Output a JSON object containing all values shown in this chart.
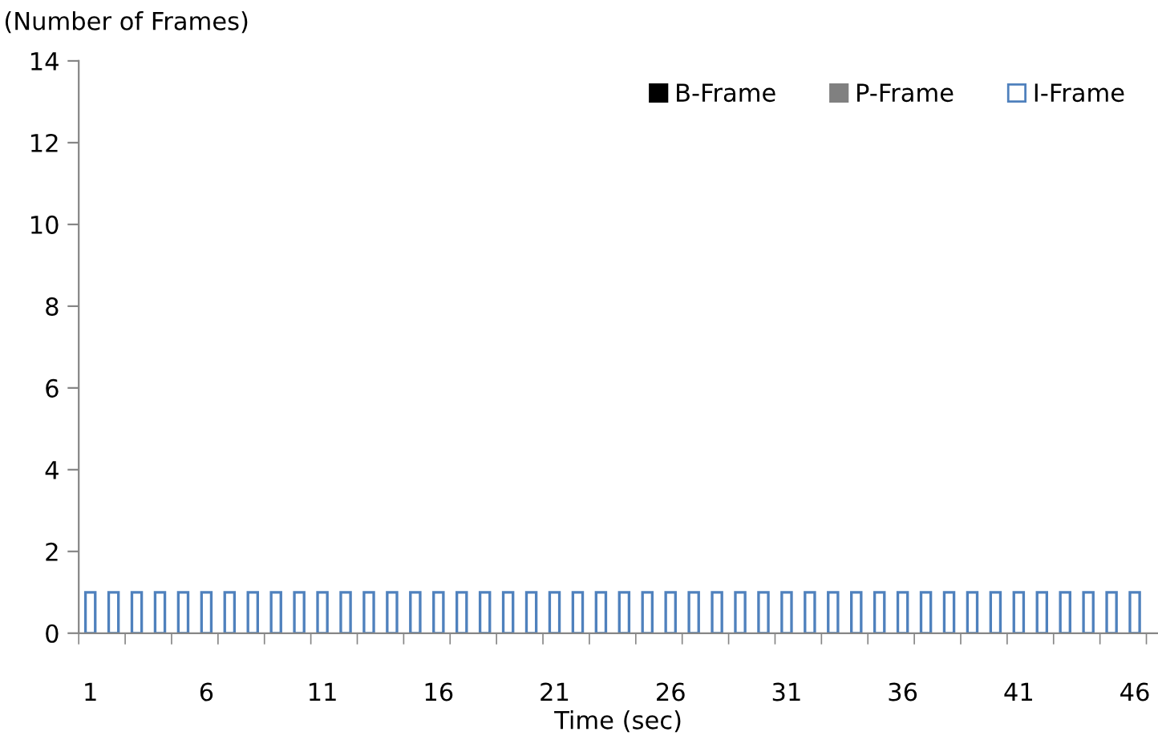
{
  "chart_data": {
    "type": "bar",
    "stacked": true,
    "ylabel": "(Number of Frames)",
    "xlabel": "Time (sec)",
    "categories": [
      "1",
      null,
      null,
      null,
      null,
      "6",
      null,
      null,
      null,
      null,
      "11",
      null,
      null,
      null,
      null,
      "16",
      null,
      null,
      null,
      null,
      "21",
      null,
      null,
      null,
      null,
      "26",
      null,
      null,
      null,
      null,
      "31",
      null,
      null,
      null,
      null,
      "36",
      null,
      null,
      null,
      null,
      "41",
      null,
      null,
      null,
      null,
      "46"
    ],
    "series": [
      {
        "name": "B-Frame",
        "color": "#000000",
        "values": [
          0,
          0,
          0,
          0,
          0,
          0,
          0,
          0,
          0,
          0,
          0,
          0,
          0,
          0,
          0,
          0,
          0,
          0,
          0,
          0,
          0,
          0,
          0,
          0,
          0,
          0,
          0,
          0,
          0,
          0,
          0,
          0,
          0,
          0,
          0,
          0,
          0,
          0,
          0,
          0,
          0,
          0,
          0,
          0,
          0,
          0
        ]
      },
      {
        "name": "P-Frame",
        "color": "#808080",
        "values": [
          0,
          0,
          0,
          0,
          0,
          0,
          0,
          0,
          0,
          0,
          0,
          0,
          0,
          0,
          0,
          0,
          0,
          0,
          0,
          0,
          0,
          0,
          0,
          0,
          0,
          0,
          0,
          0,
          0,
          0,
          0,
          0,
          0,
          0,
          0,
          0,
          0,
          0,
          0,
          0,
          0,
          0,
          0,
          0,
          0,
          0
        ]
      },
      {
        "name": "I-Frame",
        "color": "#4f81bd",
        "values": [
          1,
          1,
          1,
          1,
          1,
          1,
          1,
          1,
          1,
          1,
          1,
          1,
          1,
          1,
          1,
          1,
          1,
          1,
          1,
          1,
          1,
          1,
          1,
          1,
          1,
          1,
          1,
          1,
          1,
          1,
          1,
          1,
          1,
          1,
          1,
          1,
          1,
          1,
          1,
          1,
          1,
          1,
          1,
          1,
          1,
          1
        ]
      }
    ],
    "ylim": [
      0,
      14
    ],
    "yticks": [
      0,
      2,
      4,
      6,
      8,
      10,
      12,
      14
    ],
    "grid": false,
    "legend": "top right"
  }
}
